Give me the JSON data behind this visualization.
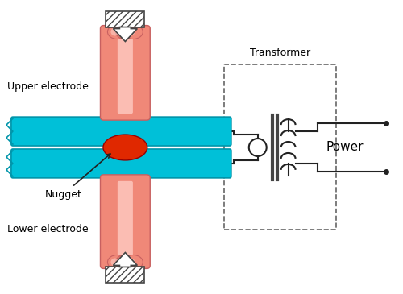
{
  "bg_color": "#ffffff",
  "electrode_color": "#f08878",
  "electrode_highlight": "#ffd0c8",
  "electrode_shadow": "#c86060",
  "sheet_color": "#00c0d8",
  "sheet_edge_color": "#0095aa",
  "nugget_color": "#e02800",
  "wire_color": "#222222",
  "dashed_box_color": "#666666",
  "text_color": "#000000",
  "label_upper_electrode": "Upper electrode",
  "label_lower_electrode": "Lower electrode",
  "label_nugget": "Nugget",
  "label_transformer": "Transformer",
  "label_power": "Power",
  "figsize": [
    5.0,
    3.65
  ],
  "dpi": 100
}
